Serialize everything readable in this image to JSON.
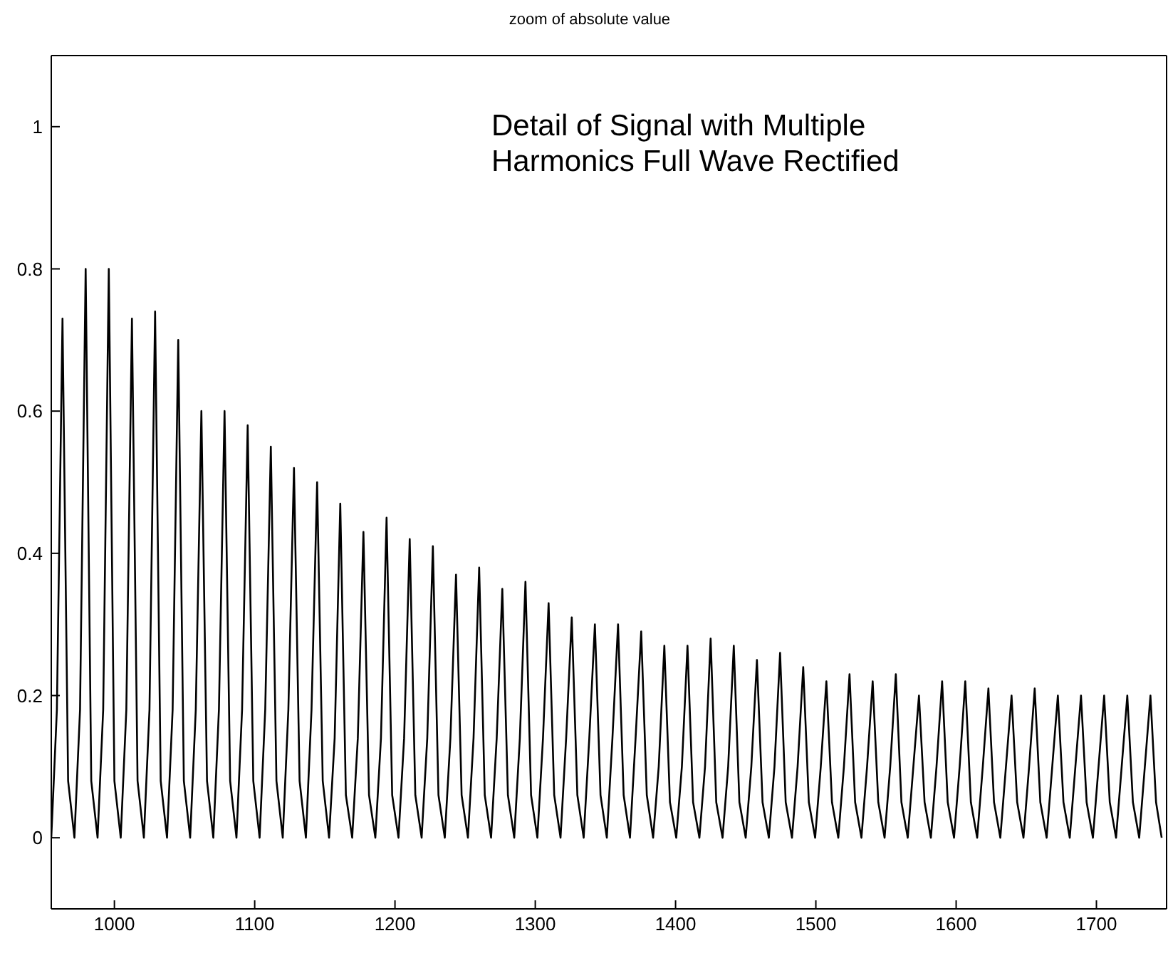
{
  "chart_data": {
    "type": "line",
    "title": "zoom of absolute value",
    "annotations": [
      "Detail of Signal with Multiple Harmonics Full Wave Rectified"
    ],
    "xlim": [
      955,
      1750
    ],
    "xticks": [
      1000,
      1100,
      1200,
      1300,
      1400,
      1500,
      1600,
      1700
    ],
    "ylim": [
      -0.1,
      1.1
    ],
    "yticks": [
      0,
      0.2,
      0.4,
      0.6,
      0.8,
      1
    ],
    "grid": false,
    "series": [
      {
        "color": "#000000",
        "x": [
          955,
          959,
          963,
          967,
          971.5,
          975.5,
          979.5,
          983.5,
          988,
          992,
          996,
          1000,
          1004.5,
          1008.5,
          1012.5,
          1016.5,
          1021,
          1025,
          1029,
          1033,
          1037.5,
          1041.5,
          1045.5,
          1049.5,
          1054,
          1058,
          1062,
          1066,
          1070.5,
          1074.5,
          1078.5,
          1082.5,
          1087,
          1091,
          1095,
          1099,
          1103.5,
          1107.5,
          1111.5,
          1115.5,
          1120,
          1124,
          1128,
          1132,
          1136.5,
          1140.5,
          1144.5,
          1148.5,
          1153,
          1157,
          1161,
          1165,
          1169.5,
          1173.5,
          1177.5,
          1181.5,
          1186,
          1190,
          1194,
          1198,
          1202.5,
          1206.5,
          1210.5,
          1214.5,
          1219,
          1223,
          1227,
          1231,
          1235.5,
          1239.5,
          1243.5,
          1247.5,
          1252,
          1256,
          1260,
          1264,
          1268.5,
          1272.5,
          1276.5,
          1280.5,
          1285,
          1289,
          1293,
          1297,
          1301.5,
          1305.5,
          1309.5,
          1313.5,
          1318,
          1322,
          1326,
          1330,
          1334.5,
          1338.5,
          1342.5,
          1346.5,
          1351,
          1355,
          1359,
          1363,
          1367.5,
          1371.5,
          1375.5,
          1379.5,
          1384,
          1388,
          1392,
          1396,
          1400.5,
          1404.5,
          1408.5,
          1412.5,
          1417,
          1421,
          1425,
          1429,
          1433.5,
          1437.5,
          1441.5,
          1445.5,
          1450,
          1454,
          1458,
          1462,
          1466.5,
          1470.5,
          1474.5,
          1478.5,
          1483,
          1487,
          1491,
          1495,
          1499.5,
          1503.5,
          1507.5,
          1511.5,
          1516,
          1520,
          1524,
          1528,
          1532.5,
          1536.5,
          1540.5,
          1544.5,
          1549,
          1553,
          1557,
          1561,
          1565.5,
          1569.5,
          1573.5,
          1577.5,
          1582,
          1586,
          1590,
          1594,
          1598.5,
          1602.5,
          1606.5,
          1610.5,
          1615,
          1619,
          1623,
          1627,
          1631.5,
          1635.5,
          1639.5,
          1643.5,
          1648,
          1652,
          1656,
          1660,
          1664.5,
          1668.5,
          1672.5,
          1676.5,
          1681,
          1685,
          1689,
          1693,
          1697.5,
          1701.5,
          1705.5,
          1709.5,
          1714,
          1718,
          1722,
          1726,
          1730.5,
          1734.5,
          1738.5,
          1742.5,
          1746.5
        ],
        "values": [
          0,
          0.18,
          0.73,
          0.08,
          0,
          0.18,
          0.8,
          0.08,
          0,
          0.18,
          0.8,
          0.08,
          0,
          0.18,
          0.73,
          0.08,
          0,
          0.18,
          0.74,
          0.08,
          0,
          0.18,
          0.7,
          0.08,
          0,
          0.18,
          0.6,
          0.08,
          0,
          0.18,
          0.6,
          0.08,
          0,
          0.18,
          0.58,
          0.08,
          0,
          0.18,
          0.55,
          0.08,
          0,
          0.18,
          0.52,
          0.08,
          0,
          0.18,
          0.5,
          0.08,
          0,
          0.14,
          0.47,
          0.06,
          0,
          0.14,
          0.43,
          0.06,
          0,
          0.14,
          0.45,
          0.06,
          0,
          0.14,
          0.42,
          0.06,
          0,
          0.14,
          0.41,
          0.06,
          0,
          0.14,
          0.37,
          0.06,
          0,
          0.14,
          0.38,
          0.06,
          0,
          0.14,
          0.35,
          0.06,
          0,
          0.14,
          0.36,
          0.06,
          0,
          0.14,
          0.33,
          0.06,
          0,
          0.14,
          0.31,
          0.06,
          0,
          0.14,
          0.3,
          0.06,
          0,
          0.14,
          0.3,
          0.06,
          0,
          0.14,
          0.29,
          0.06,
          0,
          0.1,
          0.27,
          0.05,
          0,
          0.1,
          0.27,
          0.05,
          0,
          0.1,
          0.28,
          0.05,
          0,
          0.1,
          0.27,
          0.05,
          0,
          0.1,
          0.25,
          0.05,
          0,
          0.1,
          0.26,
          0.05,
          0,
          0.1,
          0.24,
          0.05,
          0,
          0.1,
          0.22,
          0.05,
          0,
          0.1,
          0.23,
          0.05,
          0,
          0.1,
          0.22,
          0.05,
          0,
          0.1,
          0.23,
          0.05,
          0,
          0.1,
          0.2,
          0.05,
          0,
          0.1,
          0.22,
          0.05,
          0,
          0.1,
          0.22,
          0.05,
          0,
          0.1,
          0.21,
          0.05,
          0,
          0.1,
          0.2,
          0.05,
          0,
          0.1,
          0.21,
          0.05,
          0,
          0.1,
          0.2,
          0.05,
          0,
          0.1,
          0.2,
          0.05,
          0,
          0.1,
          0.2,
          0.05,
          0,
          0.1,
          0.2,
          0.05,
          0,
          0.1,
          0.2,
          0.05,
          0
        ]
      }
    ]
  }
}
